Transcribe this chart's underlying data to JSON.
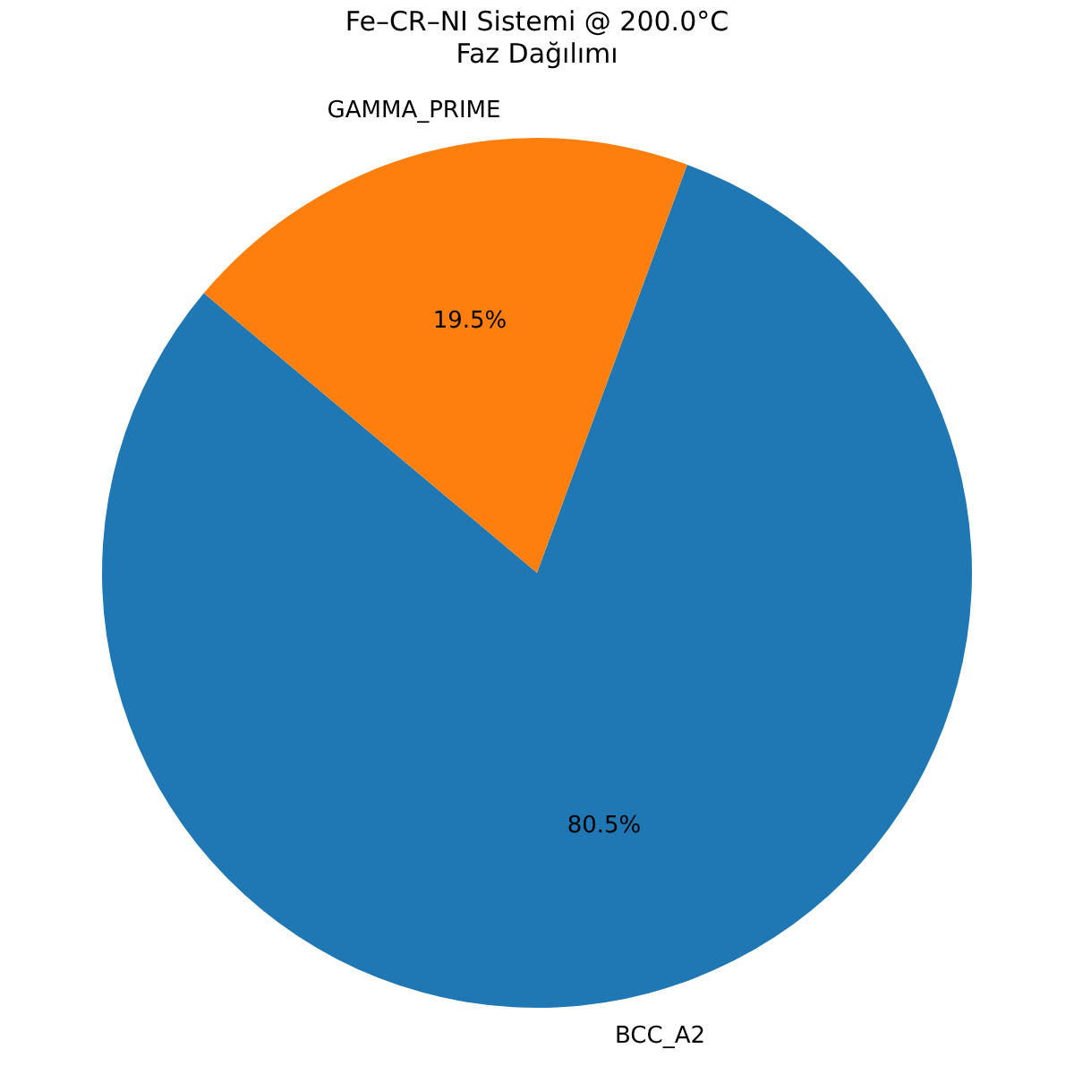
{
  "chart_data": {
    "type": "pie",
    "title": "Fe–CR–NI Sistemi @ 200.0°C\nFaz Dağılımı",
    "categories": [
      "BCC_A2",
      "GAMMA_PRIME"
    ],
    "values": [
      80.5,
      19.5
    ],
    "colors": [
      "#1f77b4",
      "#ff7f0e"
    ],
    "value_labels": [
      "80.5%",
      "19.5%"
    ]
  }
}
